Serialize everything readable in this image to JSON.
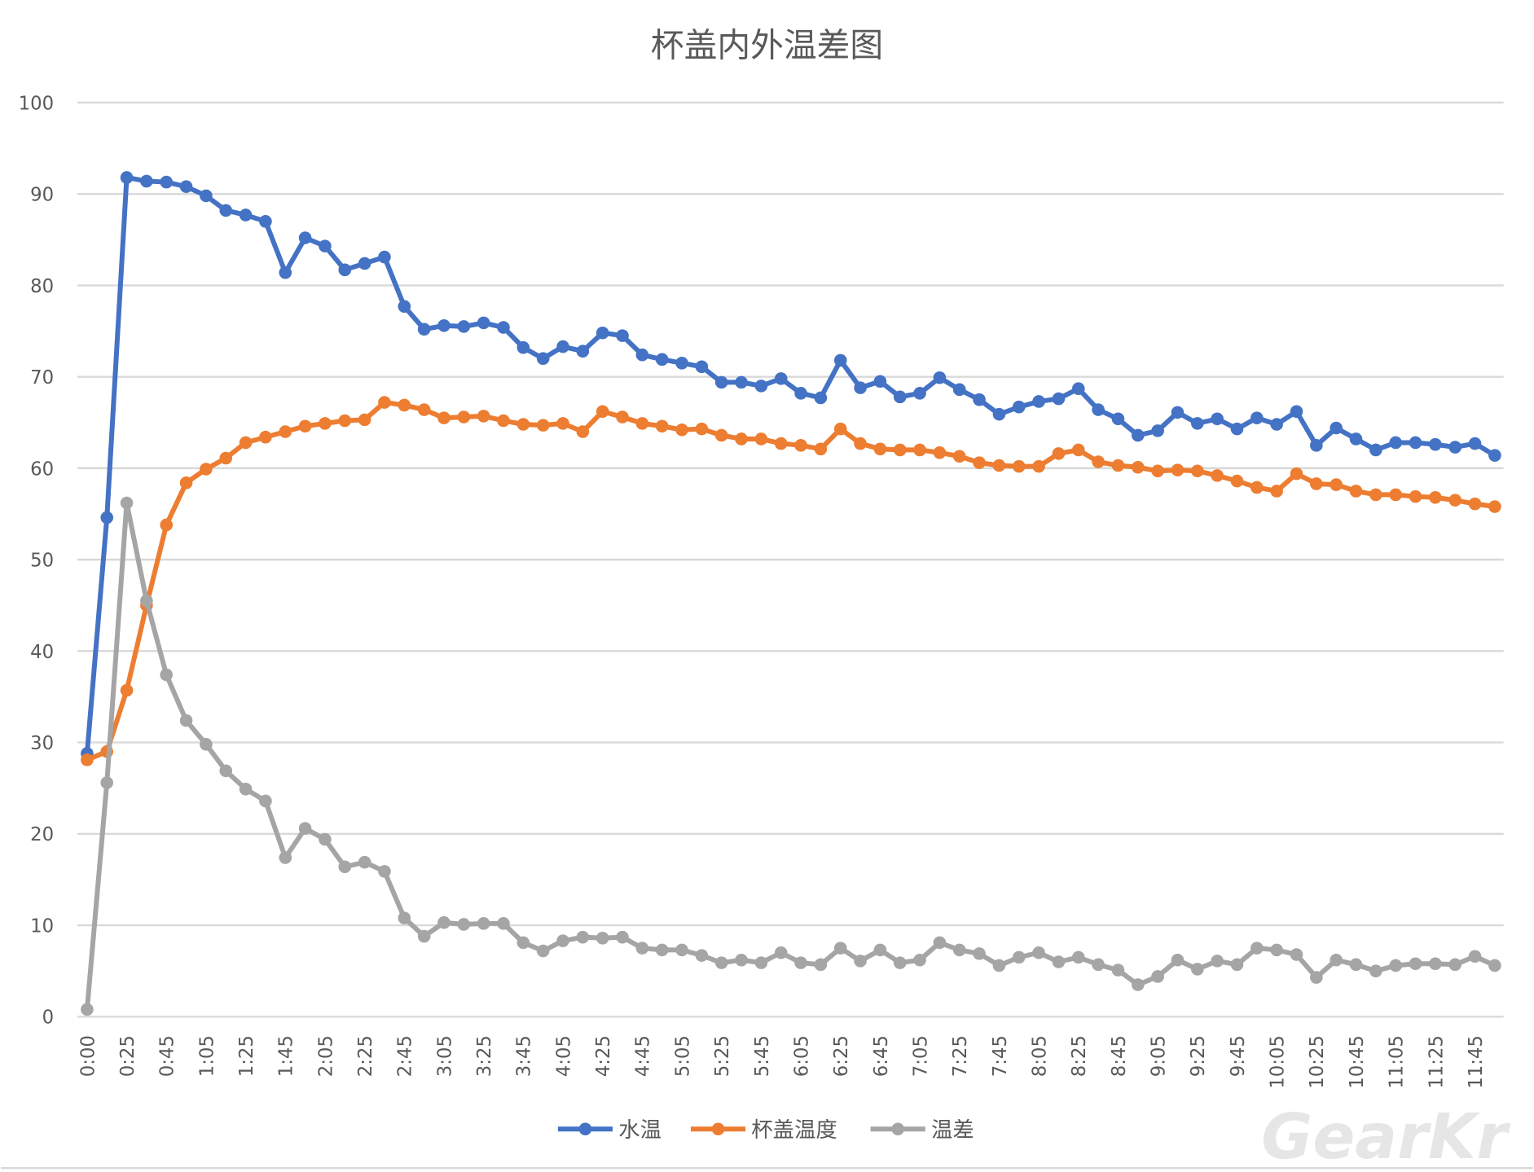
{
  "chart_data": {
    "type": "line",
    "title": "杯盖内外温差图",
    "xlabel": "",
    "ylabel": "",
    "ylim": [
      0,
      100
    ],
    "yticks": [
      "0",
      "10",
      "20",
      "30",
      "40",
      "50",
      "60",
      "70",
      "80",
      "90",
      "100"
    ],
    "grid": true,
    "legend_position": "bottom",
    "x": [
      "0:00",
      "0:15",
      "0:25",
      "0:35",
      "0:45",
      "0:55",
      "1:05",
      "1:15",
      "1:25",
      "1:35",
      "1:45",
      "1:55",
      "2:05",
      "2:15",
      "2:25",
      "2:35",
      "2:45",
      "2:55",
      "3:05",
      "3:15",
      "3:25",
      "3:35",
      "3:45",
      "3:55",
      "4:05",
      "4:15",
      "4:25",
      "4:35",
      "4:45",
      "4:55",
      "5:05",
      "5:15",
      "5:25",
      "5:35",
      "5:45",
      "5:55",
      "6:05",
      "6:15",
      "6:25",
      "6:35",
      "6:45",
      "6:55",
      "7:05",
      "7:15",
      "7:25",
      "7:35",
      "7:45",
      "7:55",
      "8:05",
      "8:15",
      "8:25",
      "8:35",
      "8:45",
      "8:55",
      "9:05",
      "9:15",
      "9:25",
      "9:35",
      "9:45",
      "9:55",
      "10:05",
      "10:15",
      "10:25",
      "10:35",
      "10:45",
      "10:55",
      "11:05",
      "11:15",
      "11:25",
      "11:35",
      "11:45",
      "11:55"
    ],
    "series": [
      {
        "name": "水温",
        "color": "#4472C4",
        "values": [
          28.8,
          54.6,
          91.8,
          91.4,
          91.3,
          90.8,
          89.8,
          88.2,
          87.7,
          87.0,
          81.4,
          85.2,
          84.3,
          81.7,
          82.4,
          83.1,
          77.7,
          75.2,
          75.6,
          75.5,
          75.9,
          75.4,
          73.2,
          72.0,
          73.3,
          72.8,
          74.8,
          74.5,
          72.4,
          71.9,
          71.5,
          71.1,
          69.4,
          69.4,
          69.0,
          69.8,
          68.2,
          67.7,
          71.8,
          68.8,
          69.5,
          67.8,
          68.2,
          69.9,
          68.6,
          67.5,
          65.9,
          66.7,
          67.3,
          67.6,
          68.7,
          66.4,
          65.4,
          63.6,
          64.1,
          66.1,
          64.9,
          65.4,
          64.3,
          65.5,
          64.8,
          66.2,
          62.5,
          64.4,
          63.2,
          62.0,
          62.8,
          62.8,
          62.6,
          62.3,
          62.7,
          61.4
        ]
      },
      {
        "name": "杯盖温度",
        "color": "#ED7D31",
        "values": [
          28.1,
          29.0,
          35.7,
          45.0,
          53.8,
          58.4,
          59.9,
          61.1,
          62.8,
          63.4,
          64.0,
          64.6,
          64.9,
          65.2,
          65.3,
          67.2,
          66.9,
          66.4,
          65.5,
          65.6,
          65.7,
          65.2,
          64.8,
          64.7,
          64.9,
          64.0,
          66.2,
          65.6,
          64.9,
          64.6,
          64.2,
          64.3,
          63.6,
          63.2,
          63.2,
          62.7,
          62.5,
          62.1,
          64.3,
          62.7,
          62.1,
          62.0,
          62.0,
          61.7,
          61.3,
          60.6,
          60.3,
          60.2,
          60.2,
          61.6,
          62.0,
          60.7,
          60.3,
          60.1,
          59.7,
          59.8,
          59.7,
          59.2,
          58.6,
          57.9,
          57.5,
          59.4,
          58.3,
          58.2,
          57.5,
          57.1,
          57.1,
          56.9,
          56.8,
          56.5,
          56.1,
          55.8
        ]
      },
      {
        "name": "温差",
        "color": "#A5A5A5",
        "values": [
          0.8,
          25.6,
          56.2,
          45.5,
          37.4,
          32.4,
          29.8,
          26.9,
          24.9,
          23.6,
          17.4,
          20.6,
          19.4,
          16.4,
          16.9,
          15.9,
          10.8,
          8.8,
          10.3,
          10.1,
          10.2,
          10.2,
          8.1,
          7.2,
          8.3,
          8.7,
          8.6,
          8.7,
          7.5,
          7.3,
          7.3,
          6.7,
          5.9,
          6.2,
          5.9,
          7.0,
          5.9,
          5.7,
          7.5,
          6.1,
          7.3,
          5.9,
          6.2,
          8.1,
          7.3,
          6.9,
          5.6,
          6.5,
          7.0,
          6.0,
          6.5,
          5.7,
          5.1,
          3.5,
          4.4,
          6.2,
          5.2,
          6.1,
          5.7,
          7.5,
          7.3,
          6.8,
          4.3,
          6.2,
          5.7,
          5.0,
          5.6,
          5.8,
          5.8,
          5.7,
          6.6,
          5.6
        ]
      }
    ]
  },
  "watermark": "GearKr"
}
